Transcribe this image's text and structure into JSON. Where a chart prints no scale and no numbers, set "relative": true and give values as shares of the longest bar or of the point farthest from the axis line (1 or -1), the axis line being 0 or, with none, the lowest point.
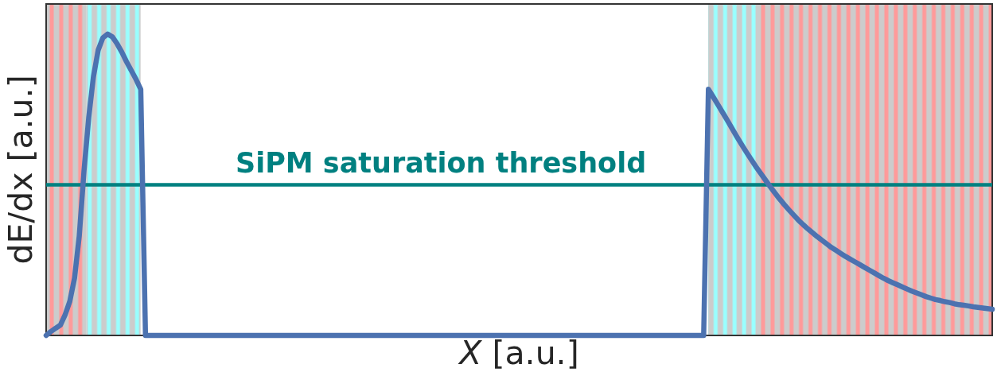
{
  "chart_data": {
    "type": "line",
    "relative": true,
    "xlabel": "X [a.u.]",
    "ylabel": "dE/dx [a.u.]",
    "categories": [
      null,
      null,
      null,
      null,
      null,
      null,
      null,
      null,
      null,
      null,
      null,
      null,
      null,
      null,
      null,
      null,
      null,
      null,
      null,
      null,
      null,
      null,
      null,
      null,
      null,
      null,
      null,
      null,
      null,
      null,
      null,
      null,
      null,
      null,
      null,
      null,
      null,
      null,
      null,
      null,
      null,
      null,
      null,
      null,
      null,
      null,
      null,
      null,
      null,
      null,
      null,
      null,
      null,
      null,
      null,
      null,
      null,
      null,
      null,
      null,
      null,
      null,
      null,
      null,
      null,
      null,
      null,
      null,
      null,
      null,
      null,
      null,
      null,
      null,
      null,
      null,
      null,
      null,
      null,
      null,
      null,
      null,
      null,
      null,
      null,
      null,
      null,
      null,
      null,
      null,
      null,
      null,
      null,
      null,
      null,
      null,
      null,
      null,
      null,
      null,
      null,
      null,
      null,
      null,
      null,
      null,
      null,
      null,
      null,
      null,
      null,
      null,
      null,
      null,
      null,
      null,
      null,
      null,
      null,
      null,
      null,
      null,
      null,
      null,
      null,
      null,
      null,
      null,
      null,
      null,
      null,
      null,
      null,
      null,
      null,
      null,
      null,
      null,
      null,
      null,
      null,
      null,
      null,
      null,
      null,
      null,
      null,
      null,
      null,
      null,
      null,
      null,
      null,
      null,
      null,
      null,
      null,
      null,
      null,
      null,
      null,
      null,
      null,
      null,
      null,
      null,
      null,
      null,
      null,
      null,
      null,
      null,
      null,
      null,
      null,
      null,
      null,
      null,
      null,
      null,
      null,
      null,
      null,
      null,
      null,
      null,
      null,
      null,
      null,
      null,
      null,
      null,
      null,
      null,
      null,
      null,
      null,
      null,
      null,
      null,
      null
    ],
    "values": [
      0,
      0.013,
      0.024,
      0.034,
      0.068,
      0.113,
      0.19,
      0.33,
      0.546,
      0.723,
      0.859,
      0.947,
      0.988,
      1,
      0.991,
      0.968,
      0.94,
      0.908,
      0.879,
      0.85,
      0.817,
      0,
      0,
      0,
      0,
      0,
      0,
      0,
      0,
      0,
      0,
      0,
      0,
      0,
      0,
      0,
      0,
      0,
      0,
      0,
      0,
      0,
      0,
      0,
      0,
      0,
      0,
      0,
      0,
      0,
      0,
      0,
      0,
      0,
      0,
      0,
      0,
      0,
      0,
      0,
      0,
      0,
      0,
      0,
      0,
      0,
      0,
      0,
      0,
      0,
      0,
      0,
      0,
      0,
      0,
      0,
      0,
      0,
      0,
      0,
      0,
      0,
      0,
      0,
      0,
      0,
      0,
      0,
      0,
      0,
      0,
      0,
      0,
      0,
      0,
      0,
      0,
      0,
      0,
      0,
      0,
      0,
      0,
      0,
      0,
      0,
      0,
      0,
      0,
      0,
      0,
      0,
      0,
      0,
      0,
      0,
      0,
      0,
      0,
      0,
      0,
      0,
      0,
      0,
      0,
      0,
      0,
      0,
      0,
      0,
      0,
      0,
      0,
      0,
      0,
      0,
      0,
      0,
      0,
      0,
      0.817,
      0.792,
      0.766,
      0.74,
      0.714,
      0.687,
      0.66,
      0.634,
      0.609,
      0.585,
      0.561,
      0.539,
      0.517,
      0.495,
      0.474,
      0.454,
      0.435,
      0.417,
      0.4,
      0.383,
      0.368,
      0.354,
      0.341,
      0.328,
      0.316,
      0.304,
      0.292,
      0.282,
      0.272,
      0.262,
      0.253,
      0.244,
      0.235,
      0.226,
      0.217,
      0.208,
      0.199,
      0.19,
      0.182,
      0.175,
      0.168,
      0.161,
      0.154,
      0.147,
      0.141,
      0.135,
      0.129,
      0.124,
      0.119,
      0.116,
      0.112,
      0.109,
      0.105,
      0.102,
      0.1,
      0.098,
      0.095,
      0.093,
      0.091,
      0.089,
      0.087
    ],
    "color": "#4c72b0",
    "ref_lines": [
      {
        "axis": "y",
        "value": 0.5,
        "label": "SiPM saturation threshold",
        "color": "#008080"
      }
    ]
  }
}
